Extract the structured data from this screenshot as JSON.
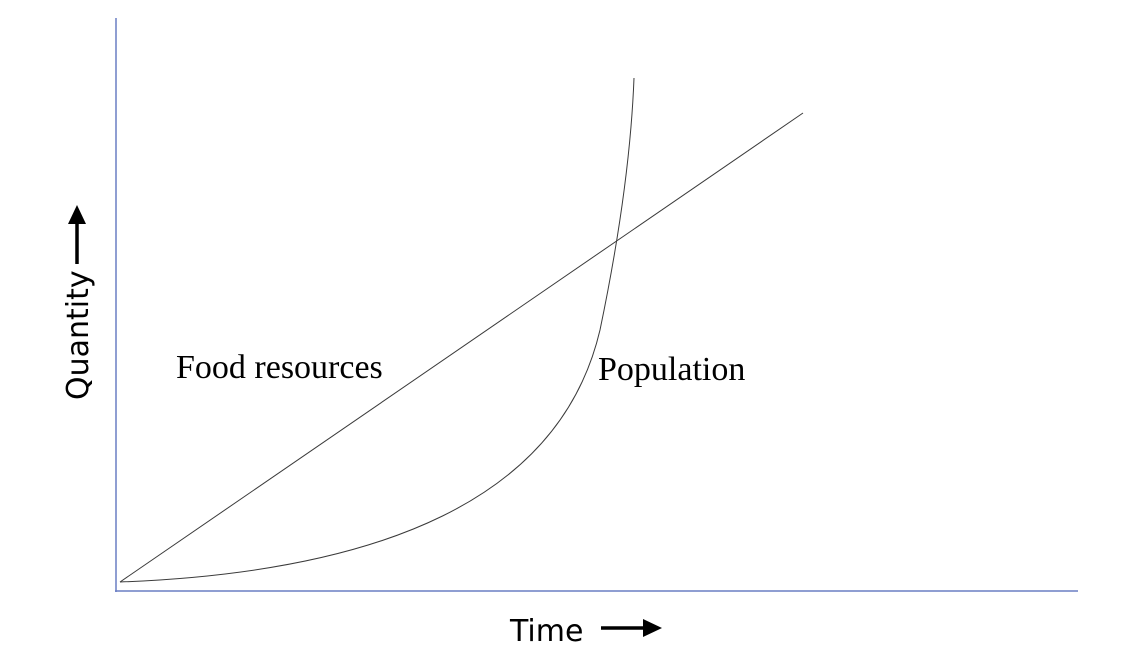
{
  "axes": {
    "x_label": "Time",
    "y_label": "Quantity",
    "arrow_icon": "right-arrow-icon",
    "axis_color": "#6a7fc4"
  },
  "series": {
    "food": {
      "label": "Food resources"
    },
    "population": {
      "label": "Population"
    }
  },
  "colors": {
    "curve": "#3a3a3a",
    "text": "#000000"
  }
}
